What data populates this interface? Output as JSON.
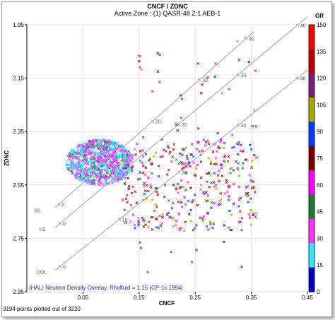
{
  "chart_data": {
    "type": "scatter",
    "title": "CNCF / ZDNC",
    "subtitle": "Active Zone : (1) QASR-48   Z:1  AEB-1",
    "xlabel": "CNCF",
    "ylabel": "ZDNC",
    "xlim": [
      -0.05,
      0.45
    ],
    "ylim": [
      2.95,
      1.95
    ],
    "x_ticks": [
      "0.05",
      "0.15",
      "0.25",
      "0.35",
      "0.45"
    ],
    "y_ticks": [
      "1.95",
      "2.15",
      "2.35",
      "2.55",
      "2.75",
      "2.95"
    ],
    "colorbar": {
      "label": "GR",
      "range": [
        0,
        150
      ],
      "ticks": [
        "150",
        "135",
        "120",
        "105",
        "90",
        "75",
        "60",
        "45",
        "30",
        "15",
        "0"
      ],
      "bands": [
        "#ff0000",
        "#bf0000",
        "#7a1d7a",
        "#a8a800",
        "#003cff",
        "#7a0000",
        "#ff00ff",
        "#1f7a3a",
        "#ff33ff",
        "#33e5ff",
        "#0000cc"
      ]
    },
    "lithology_lines": [
      {
        "name": "SS",
        "labels": [
          "0",
          "10",
          "20",
          "30",
          "40"
        ]
      },
      {
        "name": "LS",
        "labels": [
          "0",
          "10",
          "20",
          "30",
          "40"
        ]
      },
      {
        "name": "DOL",
        "labels": [
          "0",
          "10",
          "20",
          "30",
          "40"
        ]
      }
    ],
    "overlay_note": "(HAL) Neutron Density Overlay, Rhofluid = 1.15 (CP-1c 1994)",
    "footer": "3194 points plotted out of 3220",
    "points_plotted": 3194,
    "points_total": 3220,
    "clusters": [
      {
        "description": "dense main cluster",
        "x_range": [
          0.02,
          0.14
        ],
        "y_range": [
          2.38,
          2.55
        ],
        "gr_range": [
          15,
          45
        ]
      },
      {
        "description": "scattered spray",
        "x_range": [
          0.12,
          0.36
        ],
        "y_range": [
          2.38,
          2.72
        ],
        "gr_range": [
          30,
          135
        ]
      },
      {
        "description": "sparse outliers",
        "x_range": [
          0.14,
          0.37
        ],
        "y_range": [
          2.0,
          2.9
        ],
        "gr_range": [
          40,
          140
        ]
      }
    ]
  }
}
